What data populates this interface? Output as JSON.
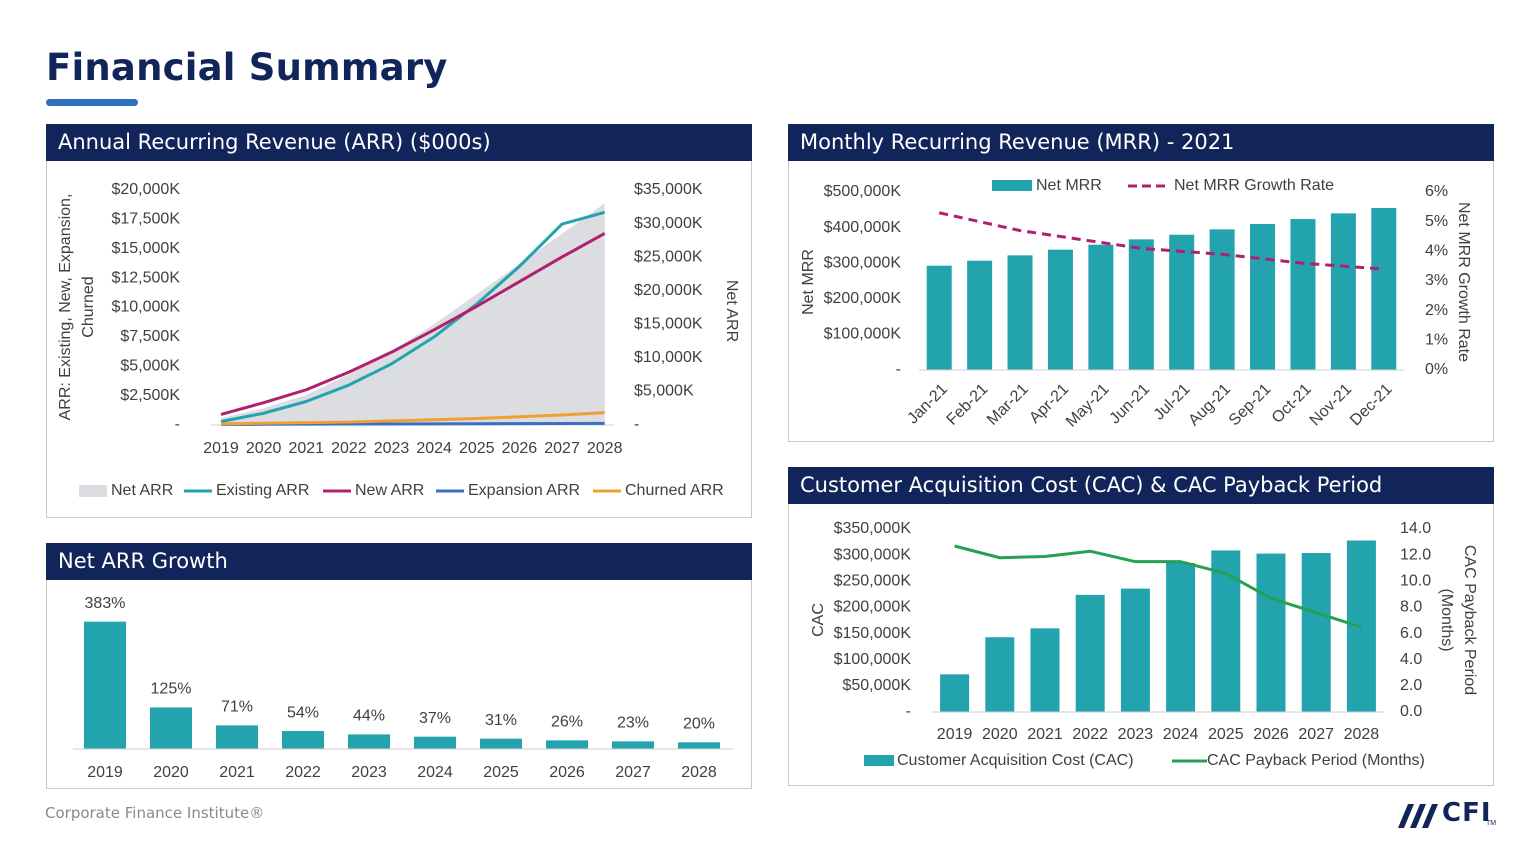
{
  "page": {
    "title": "Financial Summary",
    "footer": "Corporate Finance Institute®",
    "logo_text": "CFI",
    "logo_tm": "TM",
    "colors": {
      "navy": "#12255a",
      "accent": "#2e6fc0",
      "teal": "#23a3ae",
      "magenta": "#b0206e",
      "blue": "#3a6fc4",
      "orange": "#f0a030",
      "gray_area": "#dcdde0",
      "green": "#26a052"
    }
  },
  "panels": {
    "arr": {
      "title": "Annual Recurring Revenue (ARR) ($000s)"
    },
    "mrr": {
      "title": "Monthly Recurring Revenue (MRR) - 2021"
    },
    "growth": {
      "title": "Net ARR Growth"
    },
    "cac": {
      "title": "Customer Acquisition Cost (CAC) & CAC Payback Period"
    }
  },
  "chart_data": [
    {
      "id": "arr",
      "type": "area",
      "title": "Annual Recurring Revenue (ARR) ($000s)",
      "categories": [
        "2019",
        "2020",
        "2021",
        "2022",
        "2023",
        "2024",
        "2025",
        "2026",
        "2027",
        "2028"
      ],
      "ylabel": "ARR: Existing, New, Expansion, Churned",
      "y2label": "Net ARR",
      "ylim": [
        0,
        20000
      ],
      "y2lim": [
        0,
        35000
      ],
      "y_ticks": [
        "-",
        "$2,500K",
        "$5,000K",
        "$7,500K",
        "$10,000K",
        "$12,500K",
        "$15,000K",
        "$17,500K",
        "$20,000K"
      ],
      "y2_ticks": [
        "-",
        "$5,000K",
        "$10,000K",
        "$15,000K",
        "$20,000K",
        "$25,000K",
        "$30,000K",
        "$35,000K"
      ],
      "series": [
        {
          "name": "Net ARR",
          "axis": "right",
          "kind": "area",
          "values": [
            1000,
            2500,
            4500,
            7500,
            11000,
            15000,
            19500,
            24000,
            28500,
            33000
          ]
        },
        {
          "name": "Existing ARR",
          "axis": "left",
          "kind": "line",
          "values": [
            300,
            1000,
            2000,
            3400,
            5200,
            7500,
            10300,
            13500,
            17100,
            18100
          ]
        },
        {
          "name": "New ARR",
          "axis": "left",
          "kind": "line",
          "values": [
            900,
            1900,
            3000,
            4500,
            6200,
            8100,
            10100,
            12200,
            14300,
            16300
          ]
        },
        {
          "name": "Expansion ARR",
          "axis": "left",
          "kind": "line",
          "values": [
            50,
            60,
            70,
            80,
            90,
            100,
            110,
            120,
            130,
            140
          ]
        },
        {
          "name": "Churned ARR",
          "axis": "left",
          "kind": "line",
          "values": [
            100,
            150,
            200,
            250,
            350,
            450,
            550,
            700,
            850,
            1050
          ]
        }
      ],
      "legend": [
        "Net ARR",
        "Existing ARR",
        "New ARR",
        "Expansion ARR",
        "Churned ARR"
      ],
      "legend_position": "bottom"
    },
    {
      "id": "mrr",
      "type": "bar",
      "title": "Monthly Recurring Revenue (MRR) - 2021",
      "categories": [
        "Jan-21",
        "Feb-21",
        "Mar-21",
        "Apr-21",
        "May-21",
        "Jun-21",
        "Jul-21",
        "Aug-21",
        "Sep-21",
        "Oct-21",
        "Nov-21",
        "Dec-21"
      ],
      "ylabel": "Net MRR",
      "y2label": "Net MRR Growth Rate",
      "ylim": [
        0,
        500000
      ],
      "y2lim": [
        0,
        6
      ],
      "y_ticks": [
        "-",
        "$100,000K",
        "$200,000K",
        "$300,000K",
        "$400,000K",
        "$500,000K"
      ],
      "y2_ticks": [
        "0%",
        "1%",
        "2%",
        "3%",
        "4%",
        "5%",
        "6%"
      ],
      "series": [
        {
          "name": "Net MRR",
          "kind": "bar",
          "axis": "left",
          "values": [
            293000,
            307000,
            322000,
            338000,
            352000,
            367000,
            380000,
            395000,
            410000,
            424000,
            440000,
            455000
          ]
        },
        {
          "name": "Net MRR Growth Rate",
          "kind": "dashed-line",
          "axis": "right",
          "values": [
            5.3,
            5.0,
            4.7,
            4.5,
            4.3,
            4.1,
            4.0,
            3.9,
            3.75,
            3.6,
            3.5,
            3.4
          ]
        }
      ],
      "legend": [
        "Net MRR",
        "Net MRR Growth Rate"
      ],
      "legend_position": "top"
    },
    {
      "id": "growth",
      "type": "bar",
      "title": "Net ARR Growth",
      "categories": [
        "2019",
        "2020",
        "2021",
        "2022",
        "2023",
        "2024",
        "2025",
        "2026",
        "2027",
        "2028"
      ],
      "values": [
        383,
        125,
        71,
        54,
        44,
        37,
        31,
        26,
        23,
        20
      ],
      "data_labels": [
        "383%",
        "125%",
        "71%",
        "54%",
        "44%",
        "37%",
        "31%",
        "26%",
        "23%",
        "20%"
      ],
      "ylim": [
        0,
        400
      ]
    },
    {
      "id": "cac",
      "type": "bar",
      "title": "Customer Acquisition Cost (CAC) & CAC Payback Period",
      "categories": [
        "2019",
        "2020",
        "2021",
        "2022",
        "2023",
        "2024",
        "2025",
        "2026",
        "2027",
        "2028"
      ],
      "ylabel": "CAC",
      "y2label": "CAC Payback Period (Months)",
      "ylim": [
        0,
        350000
      ],
      "y2lim": [
        0,
        14
      ],
      "y_ticks": [
        "-",
        "$50,000K",
        "$100,000K",
        "$150,000K",
        "$200,000K",
        "$250,000K",
        "$300,000K",
        "$350,000K"
      ],
      "y2_ticks": [
        "0.0",
        "2.0",
        "4.0",
        "6.0",
        "8.0",
        "10.0",
        "12.0",
        "14.0"
      ],
      "series": [
        {
          "name": "Customer Acquisition Cost (CAC)",
          "kind": "bar",
          "axis": "left",
          "values": [
            72000,
            143000,
            160000,
            224000,
            236000,
            285000,
            309000,
            303000,
            304000,
            328000
          ]
        },
        {
          "name": "CAC Payback Period (Months)",
          "kind": "line",
          "axis": "right",
          "values": [
            12.7,
            11.8,
            11.9,
            12.3,
            11.5,
            11.5,
            10.6,
            8.7,
            7.6,
            6.5
          ]
        }
      ],
      "legend": [
        "Customer Acquisition Cost (CAC)",
        "CAC Payback Period (Months)"
      ],
      "legend_position": "bottom"
    }
  ]
}
